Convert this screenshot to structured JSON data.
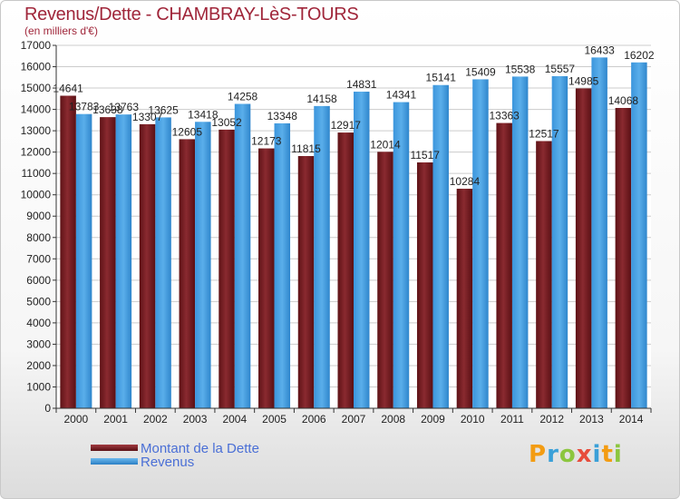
{
  "header": {
    "title": "Revenus/Dette - CHAMBRAY-LèS-TOURS",
    "subtitle": "(en milliers d'€)"
  },
  "logo": {
    "text": "Proxiti",
    "letters": [
      {
        "ch": "P",
        "color": "#f39c12"
      },
      {
        "ch": "r",
        "color": "#3aa0d8"
      },
      {
        "ch": "o",
        "color": "#8cc63f"
      },
      {
        "ch": "x",
        "color": "#e74c3c"
      },
      {
        "ch": "i",
        "color": "#3aa0d8"
      },
      {
        "ch": "t",
        "color": "#f39c12"
      },
      {
        "ch": "i",
        "color": "#8cc63f"
      }
    ]
  },
  "colors": {
    "dette": "#7a1f24",
    "revenus": "#3d9be0",
    "axis": "#333333",
    "grid": "#cccccc"
  },
  "chart_data": {
    "type": "bar",
    "title": "Revenus/Dette - CHAMBRAY-LèS-TOURS",
    "subtitle": "(en milliers d'€)",
    "categories": [
      "2000",
      "2001",
      "2002",
      "2003",
      "2004",
      "2005",
      "2006",
      "2007",
      "2008",
      "2009",
      "2010",
      "2011",
      "2012",
      "2013",
      "2014"
    ],
    "series": [
      {
        "name": "Montant de la Dette",
        "color": "#7a1f24",
        "values": [
          14641,
          13638,
          13307,
          12605,
          13052,
          12173,
          11815,
          12917,
          12014,
          11517,
          10284,
          13363,
          12517,
          14985,
          14068
        ],
        "labels": [
          "14641",
          "13638",
          "13307",
          "12605",
          "13052",
          "12173",
          "11815",
          "12917",
          "12014",
          "11517",
          "10284",
          "13363",
          "12517",
          "14985",
          "14068"
        ]
      },
      {
        "name": "Revenus",
        "color": "#3d9be0",
        "values": [
          13783,
          13763,
          13625,
          13418,
          14258,
          13348,
          14158,
          14831,
          14341,
          15141,
          15409,
          15538,
          15557,
          16433,
          16202
        ],
        "labels": [
          "13783",
          "13763",
          "13625",
          "13418",
          "14258",
          "13348",
          "14158",
          "14831",
          "14341",
          "15141",
          "15409",
          "15538",
          "15557",
          "16433",
          "16202"
        ]
      }
    ],
    "ylim": [
      0,
      17000
    ],
    "yticks": [
      0,
      1000,
      2000,
      3000,
      4000,
      5000,
      6000,
      7000,
      8000,
      9000,
      10000,
      11000,
      12000,
      13000,
      14000,
      15000,
      16000,
      17000
    ],
    "ytick_labels": [
      "0",
      "1000",
      "2000",
      "3000",
      "4000",
      "5000",
      "6000",
      "7000",
      "8000",
      "9000",
      "10000",
      "11000",
      "12000",
      "13000",
      "14000",
      "15000",
      "16000",
      "17000"
    ],
    "grid": true,
    "legend": "bottom-left"
  }
}
